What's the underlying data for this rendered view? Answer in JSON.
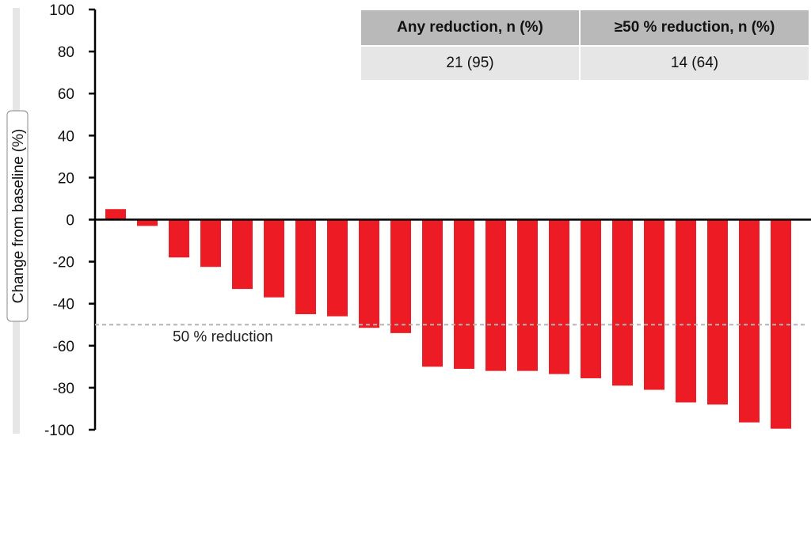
{
  "chart_data": {
    "type": "bar",
    "ylabel": "Change from baseline (%)",
    "xlabel": "",
    "ylim": [
      -100,
      100
    ],
    "yticks": [
      100,
      80,
      60,
      40,
      20,
      0,
      -20,
      -40,
      -60,
      -80,
      -100
    ],
    "values": [
      5,
      -3,
      -18,
      -22.5,
      -33,
      -37,
      -45,
      -46,
      -51.5,
      -54,
      -70,
      -71,
      -72,
      -72,
      -73.5,
      -75.5,
      -79,
      -81,
      -87,
      -88,
      -96.5,
      -99.5
    ],
    "bar_color": "#ed1c24",
    "reference_line": {
      "value": -50,
      "label": "50 % reduction"
    },
    "grid": false
  },
  "summary_table": {
    "headers": [
      "Any reduction, n (%)",
      "≥50 % reduction, n (%)"
    ],
    "values": [
      "21 (95)",
      "14 (64)"
    ]
  }
}
